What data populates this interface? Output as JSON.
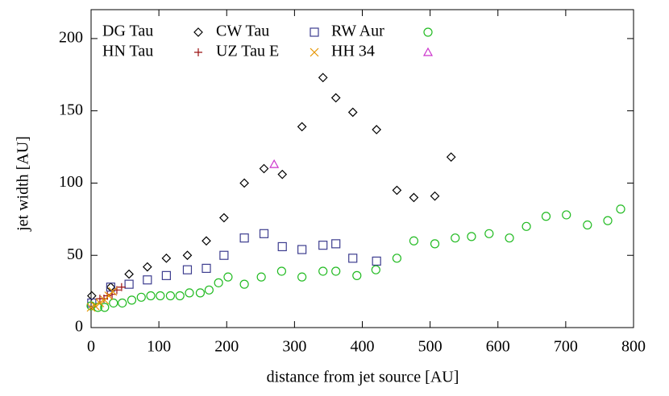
{
  "chart_data": {
    "type": "scatter",
    "xlabel": "distance from jet source [AU]",
    "ylabel": "jet width [AU]",
    "xlim": [
      0,
      800
    ],
    "ylim": [
      0,
      220
    ],
    "xticks": [
      0,
      100,
      200,
      300,
      400,
      500,
      600,
      700,
      800
    ],
    "yticks": [
      0,
      50,
      100,
      150,
      200
    ],
    "legend": "top-left",
    "series": [
      {
        "name": "DG Tau",
        "color": "#000000",
        "marker": "diamond",
        "x": [
          1,
          29,
          56,
          83,
          111,
          142,
          170,
          196,
          226,
          255,
          282,
          311,
          342,
          361,
          386,
          421,
          451,
          476,
          507,
          531
        ],
        "values": [
          22,
          28,
          37,
          42,
          48,
          50,
          60,
          76,
          100,
          110,
          106,
          139,
          173,
          159,
          149,
          137,
          95,
          90,
          91,
          118
        ]
      },
      {
        "name": "CW Tau",
        "color": "#3d3d8f",
        "marker": "square",
        "x": [
          1,
          29,
          56,
          83,
          111,
          142,
          170,
          196,
          226,
          255,
          282,
          311,
          342,
          361,
          386,
          421
        ],
        "values": [
          17,
          28,
          30,
          33,
          36,
          40,
          41,
          50,
          62,
          65,
          56,
          54,
          57,
          58,
          48,
          46
        ]
      },
      {
        "name": "RW Aur",
        "color": "#22bb22",
        "marker": "circle",
        "x": [
          0,
          10,
          20,
          33,
          46,
          60,
          74,
          88,
          102,
          117,
          131,
          145,
          161,
          174,
          188,
          202,
          226,
          251,
          281,
          311,
          342,
          361,
          392,
          420,
          451,
          476,
          507,
          537,
          561,
          587,
          617,
          642,
          671,
          701,
          732,
          762,
          781
        ],
        "values": [
          15,
          14,
          14,
          17,
          17,
          19,
          21,
          22,
          22,
          22,
          22,
          24,
          24,
          26,
          31,
          35,
          30,
          35,
          39,
          35,
          39,
          39,
          36,
          40,
          48,
          60,
          58,
          62,
          63,
          65,
          62,
          70,
          77,
          78,
          71,
          74,
          82
        ]
      },
      {
        "name": "HN Tau",
        "color": "#9b1010",
        "marker": "plus",
        "x": [
          13,
          19,
          24,
          31,
          38,
          45
        ],
        "values": [
          20,
          20,
          22,
          23,
          26,
          28
        ]
      },
      {
        "name": "UZ Tau E",
        "color": "#e69500",
        "marker": "cross",
        "x": [
          0,
          6,
          13,
          20,
          26,
          32
        ],
        "values": [
          14,
          15,
          17,
          19,
          22,
          25
        ]
      },
      {
        "name": "HH 34",
        "color": "#cc33cc",
        "marker": "triangle",
        "x": [
          270
        ],
        "values": [
          113
        ]
      }
    ]
  }
}
